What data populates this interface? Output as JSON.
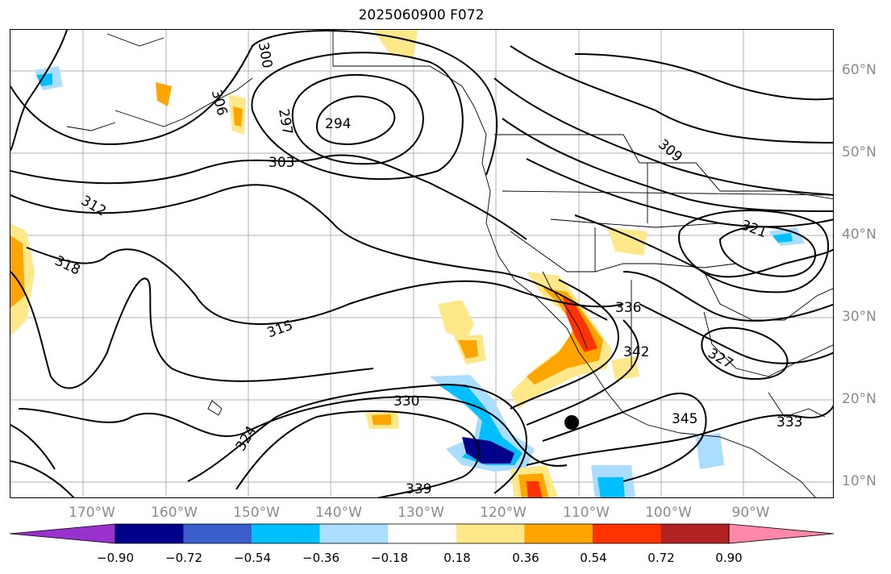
{
  "title": "2025060900 F072",
  "lat_labels": [
    "60°N",
    "50°N",
    "40°N",
    "30°N",
    "20°N",
    "10°N"
  ],
  "lon_labels": [
    "170°W",
    "160°W",
    "150°W",
    "140°W",
    "130°W",
    "120°W",
    "110°W",
    "100°W",
    "90°W"
  ],
  "colorbar": {
    "ticks": [
      "−0.90",
      "−0.72",
      "−0.54",
      "−0.36",
      "−0.18",
      "0.18",
      "0.36",
      "0.54",
      "0.72",
      "0.90"
    ],
    "colors": [
      "#9932cc",
      "#00008b",
      "#3a5fcd",
      "#00bfff",
      "#aaddff",
      "#ffffff",
      "#ffe88a",
      "#ffa500",
      "#ff3300",
      "#b22222",
      "#ff88aa"
    ]
  },
  "contour_labels": [
    "294",
    "297",
    "300",
    "303",
    "306",
    "309",
    "312",
    "315",
    "318",
    "321",
    "324",
    "327",
    "330",
    "333",
    "336",
    "339",
    "342",
    "345"
  ],
  "marker": "storm-center"
}
